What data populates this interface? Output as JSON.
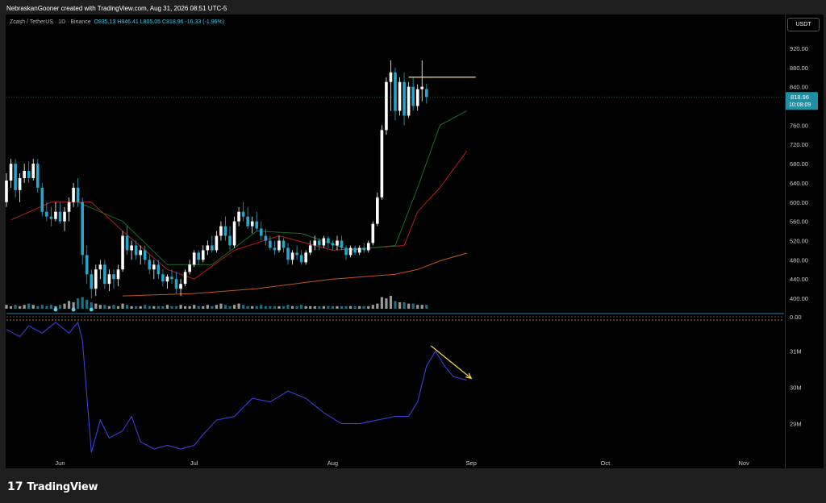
{
  "header": {
    "credit": "NebraskanGooner created with TradingView.com, Aug 31, 2026 08:51 UTC-5"
  },
  "legend": {
    "symbol": "Zcash / TetherUS · 1D · Binance",
    "open": "O835.13",
    "high": "H846.41",
    "low": "L805.05",
    "close": "C818.96",
    "change": "-16.33 (-1.96%)"
  },
  "currency_button": "USDT",
  "price_tag": {
    "price": "818.96",
    "countdown": "10:08:09"
  },
  "footer": {
    "brand": "TradingView",
    "logo_mark": "17"
  },
  "colors": {
    "up": "#ffffff",
    "down": "#26a6c9",
    "ma_fast": "#1b6b2a",
    "ma_mid": "#b71c1c",
    "ma_slow": "#c2571a",
    "osc": "#3b3fd6",
    "annotation": "#f2d24c",
    "background": "#000000"
  },
  "icons": [
    "tradingview-logo-icon",
    "dividend-marker-icon"
  ],
  "chart_data": [
    {
      "type": "candlestick",
      "title": "Zcash / TetherUS · 1D · Binance",
      "xlabel": "",
      "ylabel": "",
      "ylim": [
        380,
        940
      ],
      "y_ticks": [
        400,
        440,
        480,
        520,
        560,
        600,
        640,
        680,
        720,
        760,
        800,
        840,
        880,
        920
      ],
      "y_tick_labels": [
        "400.00",
        "440.00",
        "480.00",
        "520.00",
        "560.00",
        "600.00",
        "640.00",
        "680.00",
        "720.00",
        "760.00",
        "800.00",
        "840.00",
        "880.00",
        "920.00"
      ],
      "x_tick_labels": [
        "Jun",
        "Jul",
        "Aug",
        "Sep",
        "Oct",
        "Nov"
      ],
      "x_tick_dates": [
        "2026-06-01",
        "2026-07-01",
        "2026-08-01",
        "2026-09-01",
        "2026-10-01",
        "2026-11-01"
      ],
      "x_range": [
        "2026-05-20",
        "2026-11-10"
      ],
      "last_price": 818.96,
      "resistance_level": 860,
      "resistance_range": [
        "2026-08-18",
        "2026-09-02"
      ],
      "candles_start": "2026-05-20",
      "candles": [
        [
          600,
          660,
          590,
          645
        ],
        [
          645,
          690,
          630,
          680
        ],
        [
          680,
          690,
          610,
          625
        ],
        [
          625,
          660,
          600,
          650
        ],
        [
          650,
          680,
          640,
          665
        ],
        [
          665,
          685,
          640,
          650
        ],
        [
          650,
          690,
          645,
          680
        ],
        [
          680,
          690,
          620,
          630
        ],
        [
          630,
          640,
          570,
          580
        ],
        [
          580,
          600,
          560,
          570
        ],
        [
          570,
          590,
          550,
          565
        ],
        [
          565,
          600,
          560,
          580
        ],
        [
          580,
          600,
          555,
          560
        ],
        [
          560,
          590,
          540,
          580
        ],
        [
          580,
          610,
          560,
          600
        ],
        [
          600,
          640,
          590,
          630
        ],
        [
          630,
          650,
          590,
          600
        ],
        [
          600,
          610,
          470,
          490
        ],
        [
          490,
          510,
          430,
          450
        ],
        [
          450,
          460,
          400,
          420
        ],
        [
          420,
          470,
          405,
          460
        ],
        [
          460,
          480,
          440,
          470
        ],
        [
          470,
          480,
          420,
          430
        ],
        [
          430,
          460,
          415,
          450
        ],
        [
          450,
          460,
          420,
          440
        ],
        [
          440,
          470,
          425,
          460
        ],
        [
          460,
          540,
          455,
          530
        ],
        [
          530,
          550,
          490,
          500
        ],
        [
          500,
          520,
          480,
          510
        ],
        [
          510,
          520,
          480,
          490
        ],
        [
          490,
          510,
          470,
          500
        ],
        [
          500,
          510,
          470,
          480
        ],
        [
          480,
          490,
          450,
          460
        ],
        [
          460,
          480,
          440,
          470
        ],
        [
          470,
          480,
          440,
          450
        ],
        [
          450,
          460,
          425,
          435
        ],
        [
          435,
          450,
          420,
          445
        ],
        [
          445,
          460,
          430,
          440
        ],
        [
          440,
          455,
          410,
          420
        ],
        [
          420,
          440,
          405,
          430
        ],
        [
          430,
          460,
          425,
          455
        ],
        [
          455,
          480,
          450,
          470
        ],
        [
          470,
          500,
          465,
          495
        ],
        [
          495,
          500,
          470,
          480
        ],
        [
          480,
          510,
          475,
          500
        ],
        [
          500,
          520,
          490,
          510
        ],
        [
          510,
          530,
          495,
          500
        ],
        [
          500,
          540,
          495,
          530
        ],
        [
          530,
          560,
          520,
          550
        ],
        [
          550,
          570,
          520,
          530
        ],
        [
          530,
          550,
          500,
          510
        ],
        [
          510,
          570,
          505,
          560
        ],
        [
          560,
          590,
          550,
          580
        ],
        [
          580,
          600,
          560,
          570
        ],
        [
          570,
          590,
          545,
          550
        ],
        [
          550,
          570,
          535,
          560
        ],
        [
          560,
          580,
          540,
          545
        ],
        [
          545,
          560,
          520,
          530
        ],
        [
          530,
          545,
          510,
          520
        ],
        [
          520,
          530,
          500,
          505
        ],
        [
          505,
          520,
          490,
          500
        ],
        [
          500,
          530,
          495,
          520
        ],
        [
          520,
          525,
          495,
          505
        ],
        [
          505,
          515,
          470,
          480
        ],
        [
          480,
          500,
          470,
          495
        ],
        [
          495,
          510,
          480,
          490
        ],
        [
          490,
          500,
          470,
          475
        ],
        [
          475,
          500,
          470,
          495
        ],
        [
          495,
          520,
          490,
          510
        ],
        [
          510,
          530,
          500,
          520
        ],
        [
          520,
          525,
          500,
          510
        ],
        [
          510,
          530,
          505,
          525
        ],
        [
          525,
          530,
          505,
          515
        ],
        [
          515,
          520,
          500,
          510
        ],
        [
          510,
          530,
          500,
          520
        ],
        [
          520,
          530,
          500,
          505
        ],
        [
          505,
          510,
          480,
          490
        ],
        [
          490,
          510,
          485,
          505
        ],
        [
          505,
          510,
          490,
          495
        ],
        [
          495,
          510,
          490,
          505
        ],
        [
          505,
          515,
          495,
          500
        ],
        [
          500,
          520,
          495,
          515
        ],
        [
          515,
          560,
          510,
          555
        ],
        [
          555,
          620,
          550,
          610
        ],
        [
          610,
          760,
          605,
          750
        ],
        [
          750,
          860,
          740,
          850
        ],
        [
          850,
          895,
          790,
          870
        ],
        [
          870,
          880,
          770,
          790
        ],
        [
          790,
          860,
          780,
          850
        ],
        [
          850,
          870,
          760,
          780
        ],
        [
          780,
          850,
          775,
          840
        ],
        [
          840,
          860,
          790,
          800
        ],
        [
          800,
          845,
          790,
          835
        ],
        [
          835,
          895,
          810,
          840
        ],
        [
          835.13,
          846.41,
          805.05,
          818.96
        ]
      ],
      "volume_bars": [
        3,
        2,
        3,
        2,
        3,
        4,
        3,
        2,
        3,
        2,
        3,
        2,
        3,
        4,
        6,
        5,
        8,
        9,
        7,
        5,
        4,
        3,
        3,
        2,
        3,
        2,
        4,
        3,
        2,
        2,
        2,
        3,
        2,
        2,
        2,
        2,
        3,
        2,
        2,
        3,
        2,
        2,
        3,
        2,
        2,
        3,
        2,
        3,
        4,
        3,
        2,
        3,
        4,
        3,
        2,
        2,
        2,
        3,
        2,
        2,
        2,
        2,
        2,
        3,
        2,
        2,
        3,
        2,
        2,
        2,
        2,
        2,
        2,
        2,
        2,
        2,
        2,
        2,
        2,
        2,
        2,
        2,
        3,
        4,
        9,
        8,
        10,
        6,
        5,
        5,
        4,
        4,
        3,
        3,
        3
      ],
      "sma_slow": [
        [
          "2026-06-15",
          405
        ],
        [
          "2026-07-01",
          410
        ],
        [
          "2026-07-15",
          420
        ],
        [
          "2026-08-01",
          440
        ],
        [
          "2026-08-15",
          450
        ],
        [
          "2026-08-20",
          460
        ],
        [
          "2026-08-25",
          478
        ],
        [
          "2026-08-31",
          494
        ]
      ],
      "sma_mid": [
        [
          "2026-05-21",
          563
        ],
        [
          "2026-05-30",
          600
        ],
        [
          "2026-06-08",
          600
        ],
        [
          "2026-06-15",
          540
        ],
        [
          "2026-06-25",
          460
        ],
        [
          "2026-07-01",
          440
        ],
        [
          "2026-07-10",
          500
        ],
        [
          "2026-07-20",
          530
        ],
        [
          "2026-08-01",
          500
        ],
        [
          "2026-08-10",
          505
        ],
        [
          "2026-08-17",
          510
        ],
        [
          "2026-08-20",
          580
        ],
        [
          "2026-08-25",
          630
        ],
        [
          "2026-08-31",
          706
        ]
      ],
      "sma_fast": [
        [
          "2026-06-05",
          600
        ],
        [
          "2026-06-15",
          560
        ],
        [
          "2026-06-25",
          470
        ],
        [
          "2026-07-05",
          470
        ],
        [
          "2026-07-15",
          540
        ],
        [
          "2026-07-25",
          535
        ],
        [
          "2026-08-05",
          500
        ],
        [
          "2026-08-15",
          510
        ],
        [
          "2026-08-20",
          630
        ],
        [
          "2026-08-25",
          760
        ],
        [
          "2026-08-31",
          790
        ]
      ]
    },
    {
      "type": "line",
      "title": "",
      "xlabel": "",
      "ylabel": "",
      "ylim": [
        28.1,
        31.75
      ],
      "y_ticks": [
        29,
        30,
        31
      ],
      "y_tick_labels": [
        "29M",
        "30M",
        "31M"
      ],
      "series": [
        {
          "values": [
            [
              "2026-05-20",
              31.6
            ],
            [
              "2026-05-23",
              31.4
            ],
            [
              "2026-05-25",
              31.7
            ],
            [
              "2026-05-28",
              31.5
            ],
            [
              "2026-05-31",
              31.8
            ],
            [
              "2026-06-03",
              31.5
            ],
            [
              "2026-06-05",
              31.8
            ],
            [
              "2026-06-06",
              31.3
            ],
            [
              "2026-06-08",
              28.2
            ],
            [
              "2026-06-10",
              29.1
            ],
            [
              "2026-06-12",
              28.6
            ],
            [
              "2026-06-15",
              28.8
            ],
            [
              "2026-06-17",
              29.2
            ],
            [
              "2026-06-19",
              28.5
            ],
            [
              "2026-06-22",
              28.3
            ],
            [
              "2026-06-25",
              28.4
            ],
            [
              "2026-06-28",
              28.3
            ],
            [
              "2026-07-01",
              28.4
            ],
            [
              "2026-07-03",
              28.7
            ],
            [
              "2026-07-06",
              29.1
            ],
            [
              "2026-07-10",
              29.2
            ],
            [
              "2026-07-14",
              29.7
            ],
            [
              "2026-07-18",
              29.6
            ],
            [
              "2026-07-22",
              29.9
            ],
            [
              "2026-07-26",
              29.7
            ],
            [
              "2026-07-30",
              29.3
            ],
            [
              "2026-08-03",
              29.0
            ],
            [
              "2026-08-07",
              29.0
            ],
            [
              "2026-08-11",
              29.1
            ],
            [
              "2026-08-15",
              29.2
            ],
            [
              "2026-08-18",
              29.2
            ],
            [
              "2026-08-20",
              29.6
            ],
            [
              "2026-08-22",
              30.6
            ],
            [
              "2026-08-24",
              31.0
            ],
            [
              "2026-08-26",
              30.6
            ],
            [
              "2026-08-28",
              30.3
            ],
            [
              "2026-08-31",
              30.2
            ]
          ]
        }
      ],
      "trend_arrow": {
        "from": [
          "2026-08-23",
          31.15
        ],
        "to": [
          "2026-09-01",
          30.25
        ]
      }
    }
  ],
  "sub_bar": {
    "y_label": "0.00"
  }
}
